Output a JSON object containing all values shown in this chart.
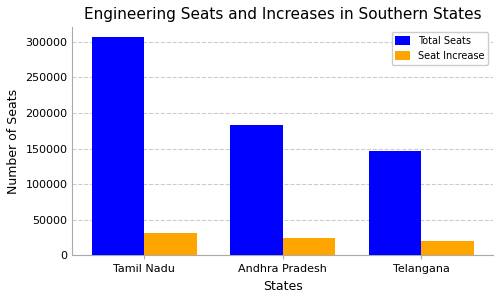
{
  "title": "Engineering Seats and Increases in Southern States",
  "xlabel": "States",
  "ylabel": "Number of Seats",
  "categories": [
    "Tamil Nadu",
    "Andhra Pradesh",
    "Telangana"
  ],
  "total_seats": [
    307000,
    183000,
    147000
  ],
  "seat_increase": [
    32000,
    24000,
    20000
  ],
  "bar_color_total": "#0000ff",
  "bar_color_increase": "#FFA500",
  "legend_labels": [
    "Total Seats",
    "Seat Increase"
  ],
  "ylim": [
    0,
    320000
  ],
  "yticks": [
    0,
    50000,
    100000,
    150000,
    200000,
    250000,
    300000
  ],
  "background_color": "#ffffff",
  "grid_color": "#cccccc",
  "title_fontsize": 11,
  "axis_label_fontsize": 9,
  "tick_fontsize": 8,
  "legend_fontsize": 7,
  "bar_width": 0.38
}
